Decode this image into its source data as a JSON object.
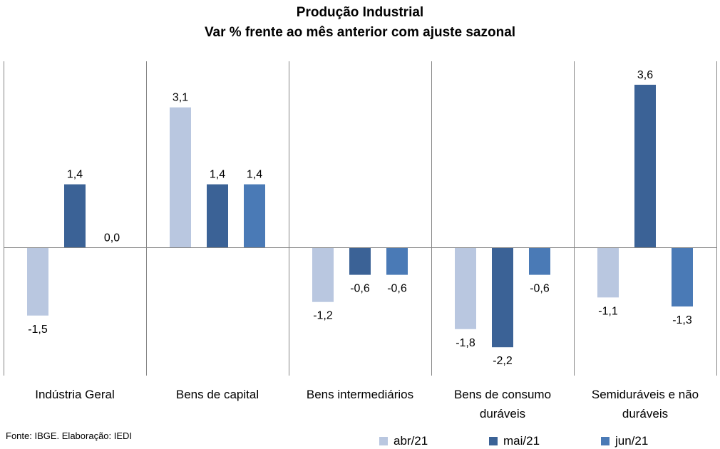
{
  "chart_data": {
    "type": "bar",
    "title": "Produção Industrial",
    "subtitle": "Var % frente ao mês anterior com ajuste sazonal",
    "categories": [
      "Indústria Geral",
      "Bens de capital",
      "Bens intermediários",
      "Bens de consumo duráveis",
      "Semiduráveis e não duráveis"
    ],
    "category_lines": [
      [
        "Indústria Geral"
      ],
      [
        "Bens de capital"
      ],
      [
        "Bens intermediários"
      ],
      [
        "Bens de consumo",
        "duráveis"
      ],
      [
        "Semiduráveis e não",
        "duráveis"
      ]
    ],
    "series": [
      {
        "name": "abr/21",
        "color": "#b9c7e0",
        "values": [
          -1.5,
          3.1,
          -1.2,
          -1.8,
          -1.1
        ],
        "labels": [
          "-1,5",
          "3,1",
          "-1,2",
          "-1,8",
          "-1,1"
        ]
      },
      {
        "name": "mai/21",
        "color": "#3b6296",
        "values": [
          1.4,
          1.4,
          -0.6,
          -2.2,
          3.6
        ],
        "labels": [
          "1,4",
          "1,4",
          "-0,6",
          "-2,2",
          "3,6"
        ]
      },
      {
        "name": "jun/21",
        "color": "#4a7ab6",
        "values": [
          0.0,
          1.4,
          -0.6,
          -0.6,
          -1.3
        ],
        "labels": [
          "0,0",
          "1,4",
          "-0,6",
          "-0,6",
          "-1,3"
        ]
      }
    ],
    "ylim": [
      -2.9,
      4.2
    ],
    "grid": false,
    "legend_position": "bottom-right",
    "source": "Fonte: IBGE. Elaboração: IEDI"
  }
}
